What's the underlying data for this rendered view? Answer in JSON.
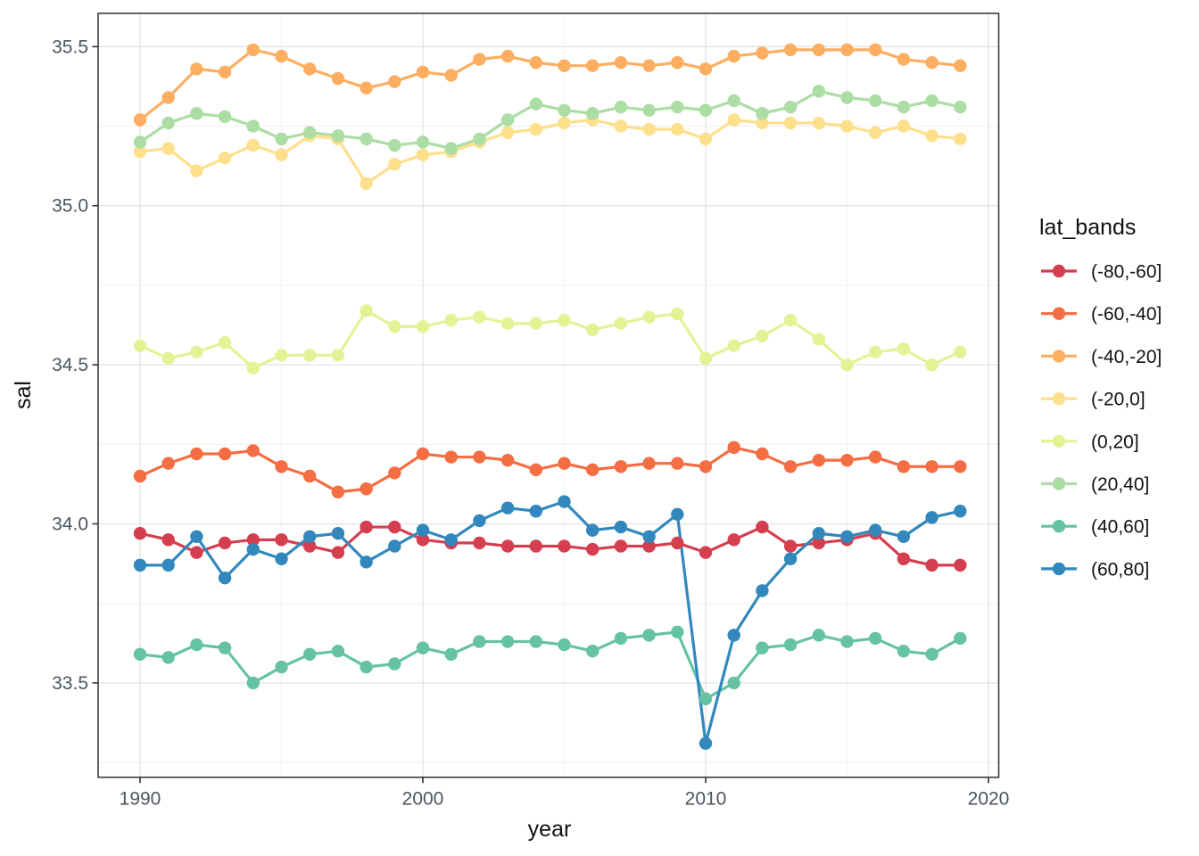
{
  "chart_data": {
    "type": "line",
    "title": "",
    "xlabel": "year",
    "ylabel": "sal",
    "legend_title": "lat_bands",
    "legend_position": "right",
    "grid": "on",
    "x_range": [
      1988.5,
      2020.5
    ],
    "y_range": [
      33.2,
      35.6
    ],
    "xticks": [
      1990,
      2000,
      2010,
      2020
    ],
    "yticks": [
      33.5,
      34.0,
      34.5,
      35.0,
      35.5
    ],
    "x": [
      1990,
      1991,
      1992,
      1993,
      1994,
      1995,
      1996,
      1997,
      1998,
      1999,
      2000,
      2001,
      2002,
      2003,
      2004,
      2005,
      2006,
      2007,
      2008,
      2009,
      2010,
      2011,
      2012,
      2013,
      2014,
      2015,
      2016,
      2017,
      2018,
      2019
    ],
    "series": [
      {
        "name": "(-80,-60]",
        "color": "#d53e4f",
        "values": [
          33.97,
          33.95,
          33.91,
          33.94,
          33.95,
          33.95,
          33.93,
          33.91,
          33.99,
          33.99,
          33.95,
          33.94,
          33.94,
          33.93,
          33.93,
          33.93,
          33.92,
          33.93,
          33.93,
          33.94,
          33.91,
          33.95,
          33.99,
          33.93,
          33.94,
          33.95,
          33.97,
          33.89,
          33.87,
          33.87
        ]
      },
      {
        "name": "(-60,-40]",
        "color": "#f46d43",
        "values": [
          34.15,
          34.19,
          34.22,
          34.22,
          34.23,
          34.18,
          34.15,
          34.1,
          34.11,
          34.16,
          34.22,
          34.21,
          34.21,
          34.2,
          34.17,
          34.19,
          34.17,
          34.18,
          34.19,
          34.19,
          34.18,
          34.24,
          34.22,
          34.18,
          34.2,
          34.2,
          34.21,
          34.18,
          34.18,
          34.18
        ]
      },
      {
        "name": "(-40,-20]",
        "color": "#fdae61",
        "values": [
          35.27,
          35.34,
          35.43,
          35.42,
          35.49,
          35.47,
          35.43,
          35.4,
          35.37,
          35.39,
          35.42,
          35.41,
          35.46,
          35.47,
          35.45,
          35.44,
          35.44,
          35.45,
          35.44,
          35.45,
          35.43,
          35.47,
          35.48,
          35.49,
          35.49,
          35.49,
          35.49,
          35.46,
          35.45,
          35.44
        ]
      },
      {
        "name": "(-20,0]",
        "color": "#fedf8c",
        "values": [
          35.17,
          35.18,
          35.11,
          35.15,
          35.19,
          35.16,
          35.22,
          35.21,
          35.07,
          35.13,
          35.16,
          35.17,
          35.2,
          35.23,
          35.24,
          35.26,
          35.27,
          35.25,
          35.24,
          35.24,
          35.21,
          35.27,
          35.26,
          35.26,
          35.26,
          35.25,
          35.23,
          35.25,
          35.22,
          35.21
        ]
      },
      {
        "name": "(0,20]",
        "color": "#e2f396",
        "values": [
          34.56,
          34.52,
          34.54,
          34.57,
          34.49,
          34.53,
          34.53,
          34.53,
          34.67,
          34.62,
          34.62,
          34.64,
          34.65,
          34.63,
          34.63,
          34.64,
          34.61,
          34.63,
          34.65,
          34.66,
          34.52,
          34.56,
          34.59,
          34.64,
          34.58,
          34.5,
          34.54,
          34.55,
          34.5,
          34.54
        ]
      },
      {
        "name": "(20,40]",
        "color": "#abdda4",
        "values": [
          35.2,
          35.26,
          35.29,
          35.28,
          35.25,
          35.21,
          35.23,
          35.22,
          35.21,
          35.19,
          35.2,
          35.18,
          35.21,
          35.27,
          35.32,
          35.3,
          35.29,
          35.31,
          35.3,
          35.31,
          35.3,
          35.33,
          35.29,
          35.31,
          35.36,
          35.34,
          35.33,
          35.31,
          35.33,
          35.31
        ]
      },
      {
        "name": "(40,60]",
        "color": "#66c2a5",
        "values": [
          33.59,
          33.58,
          33.62,
          33.61,
          33.5,
          33.55,
          33.59,
          33.6,
          33.55,
          33.56,
          33.61,
          33.59,
          33.63,
          33.63,
          33.63,
          33.62,
          33.6,
          33.64,
          33.65,
          33.66,
          33.45,
          33.5,
          33.61,
          33.62,
          33.65,
          33.63,
          33.64,
          33.6,
          33.59,
          33.64
        ]
      },
      {
        "name": "(60,80]",
        "color": "#3288bd",
        "values": [
          33.87,
          33.87,
          33.96,
          33.83,
          33.92,
          33.89,
          33.96,
          33.97,
          33.88,
          33.93,
          33.98,
          33.95,
          34.01,
          34.05,
          34.04,
          34.07,
          33.98,
          33.99,
          33.96,
          34.03,
          33.31,
          33.65,
          33.79,
          33.89,
          33.97,
          33.96,
          33.98,
          33.96,
          34.02,
          34.04
        ]
      }
    ]
  }
}
